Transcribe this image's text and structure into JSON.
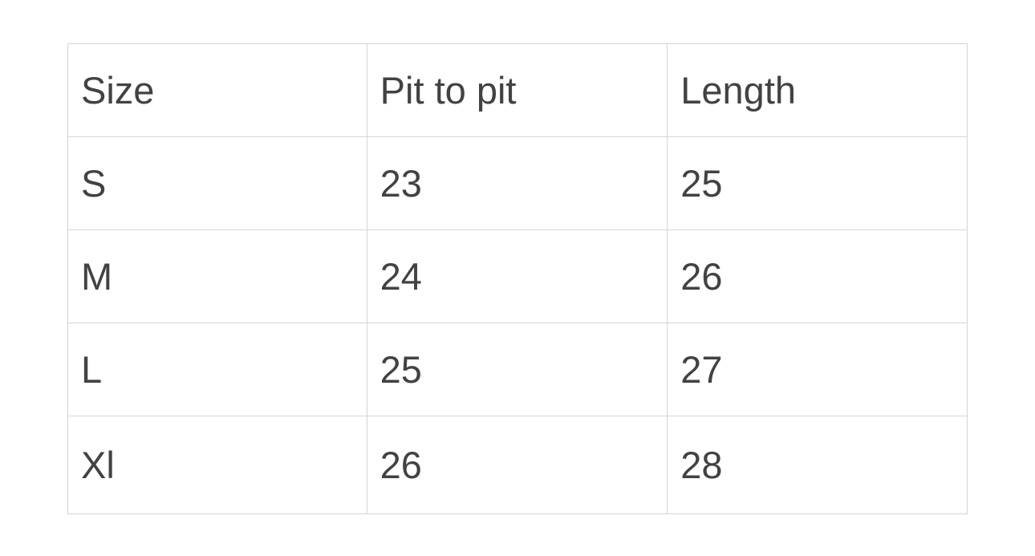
{
  "table": {
    "headers": [
      "Size",
      "Pit to pit",
      "Length"
    ],
    "rows": [
      [
        "S",
        "23",
        "25"
      ],
      [
        "M",
        "24",
        "26"
      ],
      [
        "L",
        "25",
        "27"
      ],
      [
        "Xl",
        "26",
        "28"
      ]
    ]
  }
}
